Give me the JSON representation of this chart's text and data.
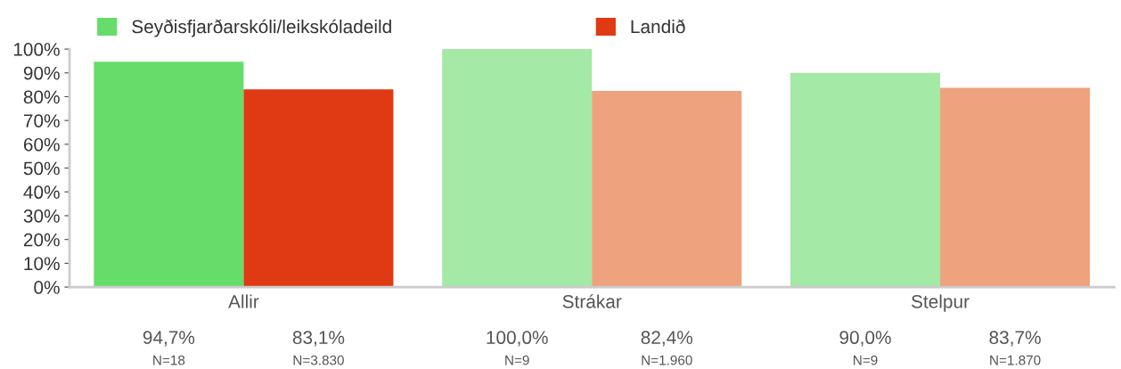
{
  "chart_data": {
    "type": "bar",
    "categories": [
      "Allir",
      "Strákar",
      "Stelpur"
    ],
    "series": [
      {
        "name": "Seyðisfjarðarskóli/leikskóladeild",
        "color": "#66dd6a",
        "colors": [
          "#66dd6a",
          "#a4e9a6",
          "#a4e9a6"
        ],
        "values": [
          94.7,
          100.0,
          90.0
        ],
        "value_labels": [
          "94,7%\nN=18",
          "100,0%\nN=9",
          "90,0%\nN=9"
        ]
      },
      {
        "name": "Landið",
        "color": "#e03a14",
        "colors": [
          "#e03a14",
          "#eea27d",
          "#eea27d"
        ],
        "values": [
          83.1,
          82.4,
          83.7
        ],
        "value_labels": [
          "83,1%\nN=3.830",
          "82,4%\nN=1.960",
          "83,7%\nN=1.870"
        ]
      }
    ],
    "ylim": [
      0,
      100
    ],
    "yticks": [
      {
        "value": 0,
        "label": "0%"
      },
      {
        "value": 10,
        "label": "10%"
      },
      {
        "value": 20,
        "label": "20%"
      },
      {
        "value": 30,
        "label": "30%"
      },
      {
        "value": 40,
        "label": "40%"
      },
      {
        "value": 50,
        "label": "50%"
      },
      {
        "value": 60,
        "label": "60%"
      },
      {
        "value": 70,
        "label": "70%"
      },
      {
        "value": 80,
        "label": "80%"
      },
      {
        "value": 90,
        "label": "90%"
      },
      {
        "value": 100,
        "label": "100%"
      }
    ],
    "grid": false,
    "legend": "top left"
  }
}
